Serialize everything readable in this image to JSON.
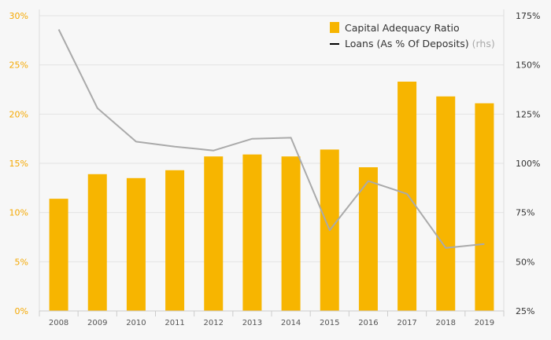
{
  "chart_data": {
    "type": "bar",
    "categories": [
      "2008",
      "2009",
      "2010",
      "2011",
      "2012",
      "2013",
      "2014",
      "2015",
      "2016",
      "2017",
      "2018",
      "2019"
    ],
    "series": [
      {
        "name": "Capital Adequacy Ratio",
        "type": "bar",
        "axis": "left",
        "color": "#f7b500",
        "values": [
          11.4,
          13.9,
          13.5,
          14.3,
          15.7,
          15.9,
          15.7,
          16.4,
          14.6,
          23.3,
          21.8,
          21.1
        ]
      },
      {
        "name": "Loans (As % Of Deposits)",
        "type": "line",
        "axis": "right",
        "color": "#aaaaaa",
        "values": [
          168,
          128,
          111,
          108.5,
          106.5,
          112.5,
          113,
          66,
          91,
          84.5,
          57,
          59
        ]
      }
    ],
    "legend": {
      "items": [
        "Capital Adequacy Ratio",
        "Loans (As % Of Deposits)"
      ],
      "rhs_suffix": "(rhs)",
      "placement": "top-right"
    },
    "y_left": {
      "range": [
        0,
        30
      ],
      "ticks": [
        "0%",
        "5%",
        "10%",
        "15%",
        "20%",
        "25%",
        "30%"
      ],
      "tick_color": "#f5a800"
    },
    "y_right": {
      "range": [
        25,
        175
      ],
      "ticks": [
        "25%",
        "50%",
        "75%",
        "100%",
        "125%",
        "150%",
        "175%"
      ]
    },
    "grid": true,
    "colors": {
      "bar": "#f7b500",
      "line": "#aaaaaa",
      "background": "#f7f7f7",
      "grid": "#e3e3e3"
    }
  }
}
